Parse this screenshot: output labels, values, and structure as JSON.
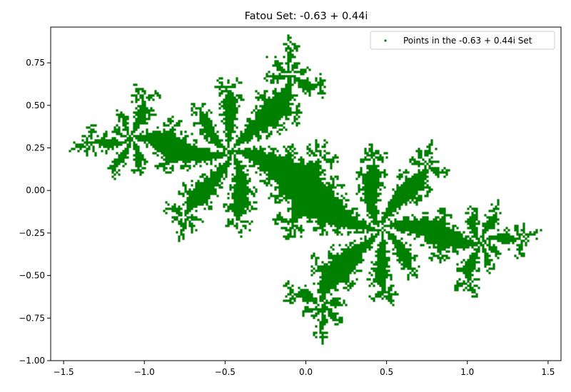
{
  "chart_data": {
    "type": "scatter",
    "title": "Fatou Set: -0.63 + 0.44i",
    "xlabel": "",
    "ylabel": "",
    "xlim": [
      -1.58,
      1.58
    ],
    "ylim": [
      -1.0,
      0.96
    ],
    "x_ticks": [
      -1.5,
      -1.0,
      -0.5,
      0.0,
      0.5,
      1.0,
      1.5
    ],
    "x_tick_labels": [
      "−1.5",
      "−1.0",
      "−0.5",
      "0.0",
      "0.5",
      "1.0",
      "1.5"
    ],
    "y_ticks": [
      -1.0,
      -0.75,
      -0.5,
      -0.25,
      0.0,
      0.25,
      0.5,
      0.75
    ],
    "y_tick_labels": [
      "−1.00",
      "−0.75",
      "−0.50",
      "−0.25",
      "0.00",
      "0.25",
      "0.50",
      "0.75"
    ],
    "grid": false,
    "legend_position": "top-right",
    "c": {
      "re": -0.63,
      "im": 0.44
    },
    "series": [
      {
        "name": "Points in the -0.63 + 0.44i Set",
        "color": "#008000",
        "marker": "point"
      }
    ]
  }
}
